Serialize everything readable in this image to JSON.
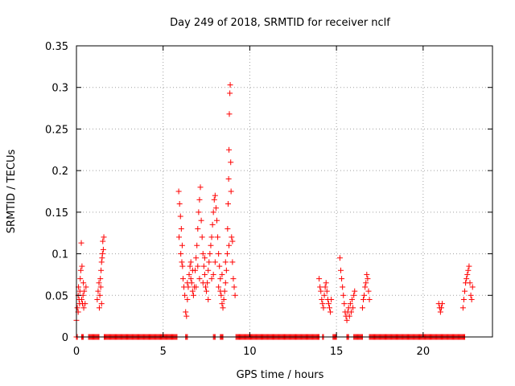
{
  "chart_data": {
    "type": "scatter",
    "title": "Day 249 of 2018, SRMTID for receiver nclf",
    "xlabel": "GPS time / hours",
    "ylabel": "SRMTID / TECUs",
    "xlim": [
      0,
      24
    ],
    "ylim": [
      0,
      0.35
    ],
    "grid": true,
    "marker": "+",
    "color": "#ff0000",
    "x_ticks": [
      0,
      5,
      10,
      15,
      20
    ],
    "y_ticks": [
      0,
      0.05,
      0.1,
      0.15,
      0.2,
      0.25,
      0.3,
      0.35
    ],
    "x_tick_labels": [
      "0",
      "5",
      "10",
      "15",
      "20"
    ],
    "y_tick_labels": [
      "0",
      "0.05",
      "0.1",
      "0.15",
      "0.2",
      "0.25",
      "0.3",
      "0.35"
    ],
    "points": [
      [
        0.0,
        0.02
      ],
      [
        0.05,
        0.035
      ],
      [
        0.1,
        0.05
      ],
      [
        0.12,
        0.06
      ],
      [
        0.15,
        0.045
      ],
      [
        0.2,
        0.055
      ],
      [
        0.22,
        0.07
      ],
      [
        0.25,
        0.08
      ],
      [
        0.28,
        0.113
      ],
      [
        0.3,
        0.045
      ],
      [
        0.35,
        0.04
      ],
      [
        0.38,
        0.05
      ],
      [
        0.4,
        0.065
      ],
      [
        0.42,
        0.035
      ],
      [
        0.45,
        0.055
      ],
      [
        0.5,
        0.04
      ],
      [
        0.55,
        0.06
      ],
      [
        0.1,
        0.03
      ],
      [
        0.18,
        0.04
      ],
      [
        0.32,
        0.085
      ],
      [
        1.2,
        0.045
      ],
      [
        1.25,
        0.055
      ],
      [
        1.3,
        0.065
      ],
      [
        1.32,
        0.035
      ],
      [
        1.35,
        0.05
      ],
      [
        1.4,
        0.06
      ],
      [
        1.42,
        0.08
      ],
      [
        1.45,
        0.09
      ],
      [
        1.5,
        0.1
      ],
      [
        1.52,
        0.115
      ],
      [
        1.55,
        0.105
      ],
      [
        1.45,
        0.04
      ],
      [
        1.38,
        0.07
      ],
      [
        1.58,
        0.12
      ],
      [
        1.48,
        0.095
      ],
      [
        5.9,
        0.175
      ],
      [
        5.95,
        0.16
      ],
      [
        6.0,
        0.145
      ],
      [
        6.05,
        0.13
      ],
      [
        6.1,
        0.11
      ],
      [
        5.92,
        0.12
      ],
      [
        6.02,
        0.1
      ],
      [
        6.08,
        0.09
      ],
      [
        6.12,
        0.085
      ],
      [
        6.15,
        0.07
      ],
      [
        6.2,
        0.06
      ],
      [
        6.25,
        0.05
      ],
      [
        6.3,
        0.03
      ],
      [
        6.35,
        0.025
      ],
      [
        6.4,
        0.045
      ],
      [
        6.45,
        0.06
      ],
      [
        6.5,
        0.075
      ],
      [
        6.55,
        0.085
      ],
      [
        6.6,
        0.07
      ],
      [
        6.65,
        0.065
      ],
      [
        6.7,
        0.055
      ],
      [
        6.75,
        0.05
      ],
      [
        6.8,
        0.06
      ],
      [
        6.85,
        0.08
      ],
      [
        6.9,
        0.095
      ],
      [
        6.95,
        0.11
      ],
      [
        7.0,
        0.13
      ],
      [
        7.05,
        0.15
      ],
      [
        7.1,
        0.165
      ],
      [
        7.15,
        0.18
      ],
      [
        7.2,
        0.14
      ],
      [
        7.25,
        0.12
      ],
      [
        7.3,
        0.1
      ],
      [
        7.35,
        0.085
      ],
      [
        7.4,
        0.075
      ],
      [
        7.45,
        0.06
      ],
      [
        7.5,
        0.055
      ],
      [
        7.55,
        0.065
      ],
      [
        7.6,
        0.08
      ],
      [
        7.65,
        0.09
      ],
      [
        7.7,
        0.1
      ],
      [
        7.75,
        0.11
      ],
      [
        7.8,
        0.12
      ],
      [
        7.85,
        0.135
      ],
      [
        7.9,
        0.15
      ],
      [
        7.95,
        0.165
      ],
      [
        8.0,
        0.17
      ],
      [
        8.05,
        0.155
      ],
      [
        8.1,
        0.14
      ],
      [
        8.15,
        0.12
      ],
      [
        8.2,
        0.1
      ],
      [
        8.25,
        0.085
      ],
      [
        8.3,
        0.07
      ],
      [
        8.35,
        0.05
      ],
      [
        8.4,
        0.04
      ],
      [
        8.45,
        0.035
      ],
      [
        8.5,
        0.045
      ],
      [
        8.55,
        0.055
      ],
      [
        8.6,
        0.065
      ],
      [
        8.65,
        0.08
      ],
      [
        8.7,
        0.1
      ],
      [
        8.72,
        0.13
      ],
      [
        8.75,
        0.16
      ],
      [
        8.78,
        0.19
      ],
      [
        8.8,
        0.225
      ],
      [
        8.82,
        0.268
      ],
      [
        8.85,
        0.293
      ],
      [
        8.87,
        0.303
      ],
      [
        8.9,
        0.21
      ],
      [
        8.92,
        0.175
      ],
      [
        8.95,
        0.12
      ],
      [
        9.0,
        0.09
      ],
      [
        9.05,
        0.07
      ],
      [
        9.1,
        0.06
      ],
      [
        9.15,
        0.05
      ],
      [
        6.7,
        0.08
      ],
      [
        6.9,
        0.06
      ],
      [
        7.1,
        0.07
      ],
      [
        7.3,
        0.065
      ],
      [
        7.6,
        0.045
      ],
      [
        7.8,
        0.07
      ],
      [
        8.0,
        0.09
      ],
      [
        8.2,
        0.06
      ],
      [
        8.4,
        0.075
      ],
      [
        8.6,
        0.09
      ],
      [
        8.8,
        0.11
      ],
      [
        9.0,
        0.115
      ],
      [
        6.4,
        0.065
      ],
      [
        6.6,
        0.09
      ],
      [
        7.0,
        0.085
      ],
      [
        7.4,
        0.095
      ],
      [
        7.9,
        0.075
      ],
      [
        8.3,
        0.055
      ],
      [
        14.0,
        0.07
      ],
      [
        14.05,
        0.06
      ],
      [
        14.1,
        0.055
      ],
      [
        14.15,
        0.045
      ],
      [
        14.2,
        0.04
      ],
      [
        14.25,
        0.035
      ],
      [
        14.3,
        0.05
      ],
      [
        14.35,
        0.06
      ],
      [
        14.4,
        0.065
      ],
      [
        14.45,
        0.055
      ],
      [
        14.5,
        0.045
      ],
      [
        14.55,
        0.04
      ],
      [
        14.6,
        0.035
      ],
      [
        14.65,
        0.03
      ],
      [
        14.7,
        0.045
      ],
      [
        15.2,
        0.095
      ],
      [
        15.25,
        0.08
      ],
      [
        15.3,
        0.07
      ],
      [
        15.35,
        0.06
      ],
      [
        15.4,
        0.05
      ],
      [
        15.45,
        0.04
      ],
      [
        15.5,
        0.03
      ],
      [
        15.55,
        0.025
      ],
      [
        15.6,
        0.02
      ],
      [
        15.65,
        0.03
      ],
      [
        15.7,
        0.035
      ],
      [
        15.75,
        0.025
      ],
      [
        15.8,
        0.04
      ],
      [
        15.85,
        0.03
      ],
      [
        15.9,
        0.045
      ],
      [
        15.95,
        0.035
      ],
      [
        16.0,
        0.05
      ],
      [
        16.05,
        0.055
      ],
      [
        16.5,
        0.035
      ],
      [
        16.55,
        0.045
      ],
      [
        16.6,
        0.05
      ],
      [
        16.65,
        0.06
      ],
      [
        16.7,
        0.065
      ],
      [
        16.75,
        0.075
      ],
      [
        16.8,
        0.07
      ],
      [
        16.85,
        0.055
      ],
      [
        16.9,
        0.045
      ],
      [
        20.9,
        0.04
      ],
      [
        20.95,
        0.035
      ],
      [
        21.0,
        0.03
      ],
      [
        21.05,
        0.035
      ],
      [
        21.1,
        0.04
      ],
      [
        22.3,
        0.035
      ],
      [
        22.35,
        0.045
      ],
      [
        22.4,
        0.055
      ],
      [
        22.45,
        0.065
      ],
      [
        22.5,
        0.07
      ],
      [
        22.55,
        0.075
      ],
      [
        22.6,
        0.08
      ],
      [
        22.65,
        0.085
      ],
      [
        22.7,
        0.065
      ],
      [
        22.75,
        0.05
      ],
      [
        22.8,
        0.045
      ],
      [
        22.85,
        0.06
      ]
    ],
    "baseline_segments": [
      [
        0.0,
        0.05
      ],
      [
        0.3,
        0.4
      ],
      [
        0.7,
        1.3
      ],
      [
        1.6,
        5.8
      ],
      [
        6.3,
        6.4
      ],
      [
        7.9,
        8.0
      ],
      [
        8.3,
        8.45
      ],
      [
        9.2,
        14.0
      ],
      [
        14.2,
        14.25
      ],
      [
        14.8,
        15.0
      ],
      [
        15.6,
        15.7
      ],
      [
        16.0,
        16.5
      ],
      [
        16.9,
        22.4
      ]
    ]
  }
}
